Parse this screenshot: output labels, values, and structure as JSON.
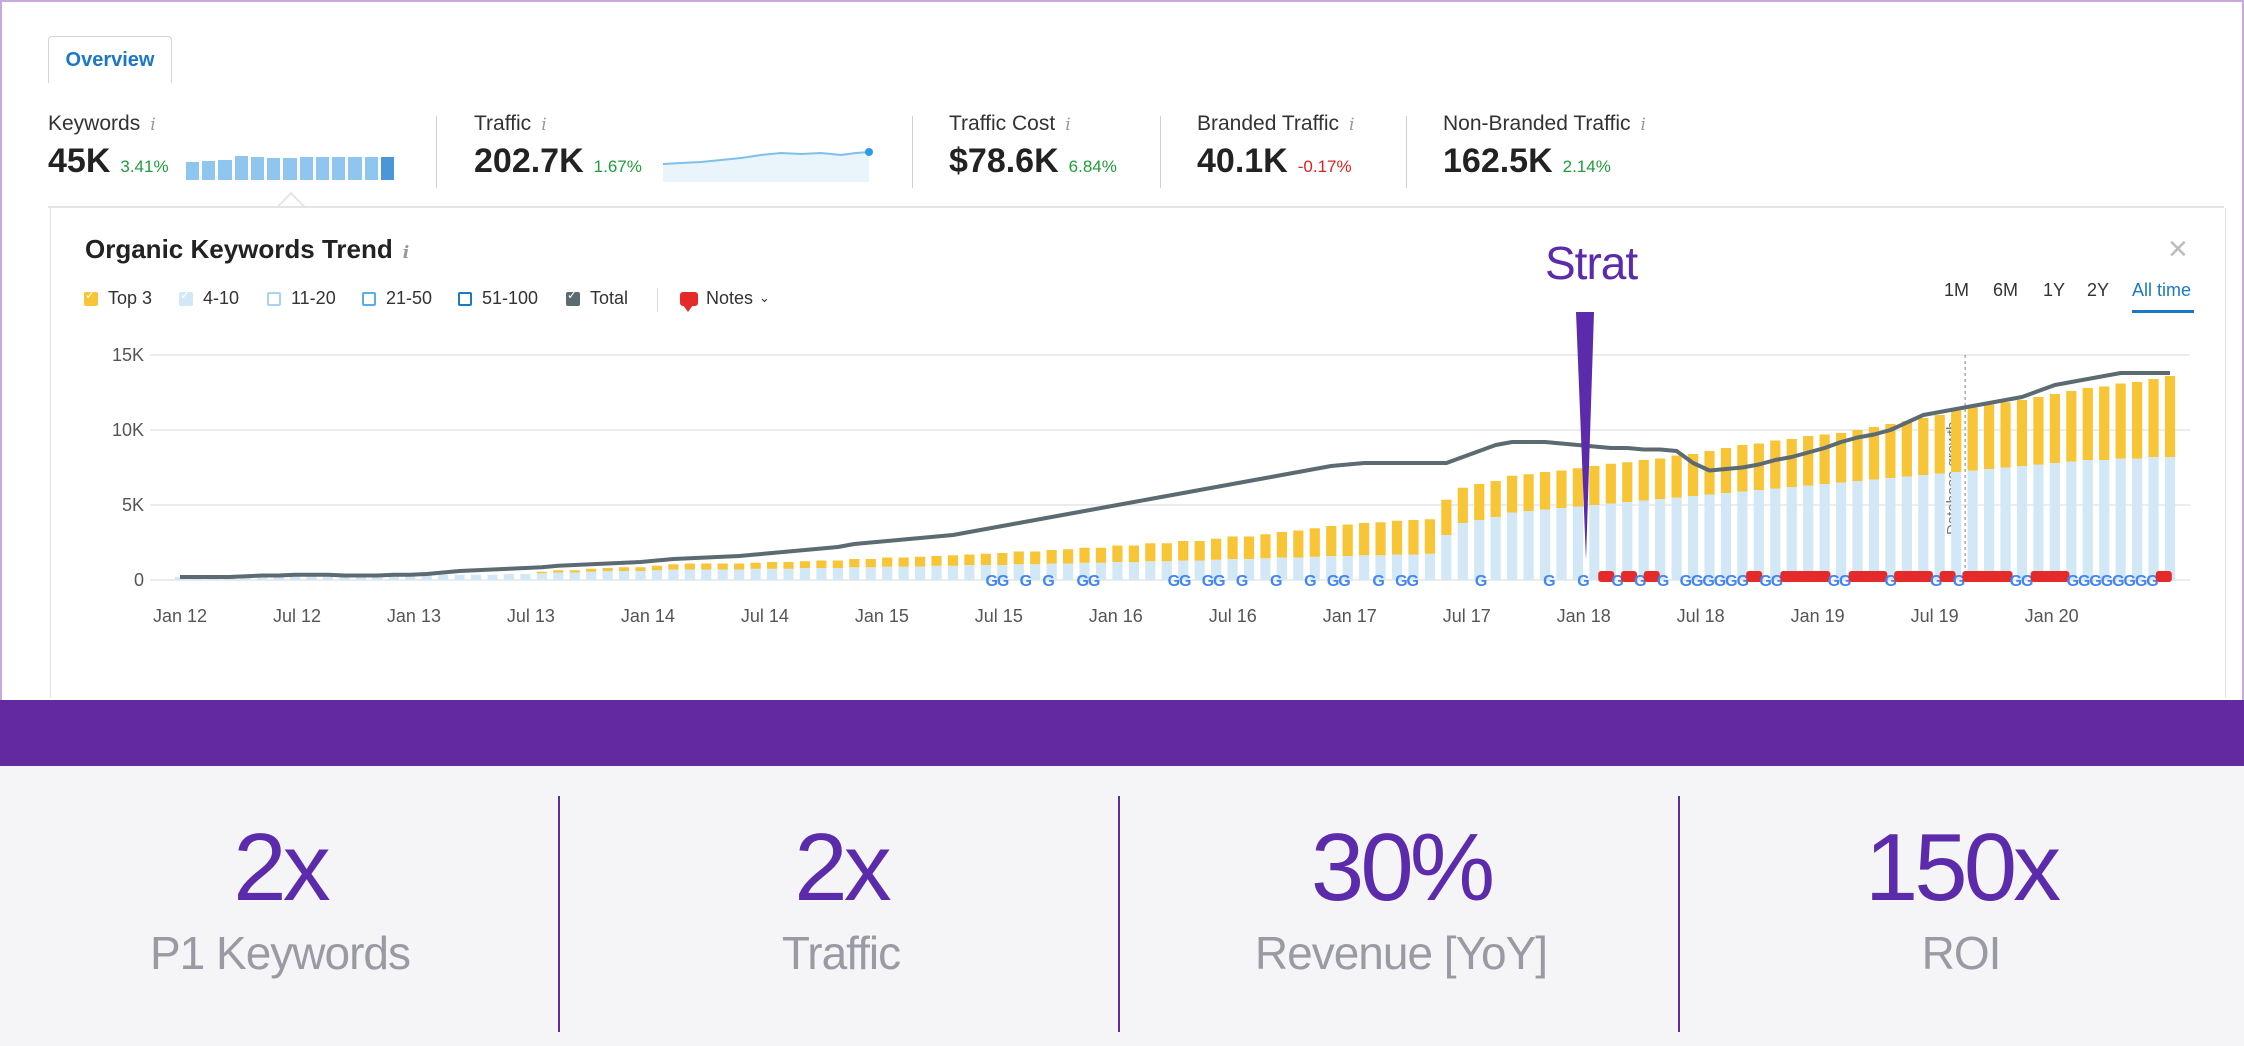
{
  "tabs": {
    "overview": "Overview"
  },
  "metrics": [
    {
      "label": "Keywords",
      "value": "45K",
      "change": "3.41%",
      "trend": "up"
    },
    {
      "label": "Traffic",
      "value": "202.7K",
      "change": "1.67%",
      "trend": "up"
    },
    {
      "label": "Traffic Cost",
      "value": "$78.6K",
      "change": "6.84%",
      "trend": "up"
    },
    {
      "label": "Branded Traffic",
      "value": "40.1K",
      "change": "-0.17%",
      "trend": "down"
    },
    {
      "label": "Non-Branded Traffic",
      "value": "162.5K",
      "change": "2.14%",
      "trend": "up"
    }
  ],
  "info_icon": "i",
  "card": {
    "title": "Organic Keywords Trend",
    "close_icon": "×",
    "legend": [
      "Top 3",
      "4-10",
      "11-20",
      "21-50",
      "51-100",
      "Total"
    ],
    "notes_label": "Notes",
    "periods": [
      "1M",
      "6M",
      "1Y",
      "2Y",
      "All time"
    ],
    "active_period": "All time"
  },
  "annotation": {
    "label": "Strat"
  },
  "colors": {
    "top3": "#f8c537",
    "r4_10": "#d3e8f6",
    "total_line": "#5c6a72",
    "accent": "#5c2bab",
    "positive": "#1f9d3c",
    "negative": "#e02020"
  },
  "chart_data": {
    "type": "bar",
    "title": "Organic Keywords Trend",
    "y_ticks": [
      "15K",
      "10K",
      "5K",
      "0"
    ],
    "ylim": [
      0,
      15000
    ],
    "x_ticks": [
      "Jan 12",
      "Jul 12",
      "Jan 13",
      "Jul 13",
      "Jan 14",
      "Jul 14",
      "Jan 15",
      "Jul 15",
      "Jan 16",
      "Jul 16",
      "Jan 17",
      "Jul 17",
      "Jan 18",
      "Jul 18",
      "Jan 19",
      "Jul 19",
      "Jan 20"
    ],
    "x_range": [
      "Jan 12",
      "Jun 20"
    ],
    "side_annotation": "Database growth",
    "series": [
      {
        "name": "Top 3",
        "values": [
          0,
          0,
          0,
          0,
          0,
          0,
          0,
          0,
          0,
          0,
          0,
          0,
          0,
          0,
          0,
          0,
          0,
          0,
          0,
          0,
          0,
          0,
          100,
          150,
          150,
          200,
          200,
          250,
          250,
          300,
          350,
          400,
          400,
          400,
          400,
          400,
          450,
          450,
          450,
          500,
          500,
          550,
          550,
          600,
          600,
          650,
          650,
          700,
          700,
          750,
          800,
          850,
          850,
          900,
          950,
          1000,
          1000,
          1100,
          1100,
          1200,
          1200,
          1300,
          1300,
          1400,
          1500,
          1500,
          1600,
          1700,
          1800,
          1900,
          2000,
          2100,
          2150,
          2200,
          2250,
          2300,
          2300,
          2350,
          2350,
          2400,
          2400,
          2450,
          2450,
          2500,
          2500,
          2550,
          2600,
          2650,
          2650,
          2700,
          2700,
          2800,
          2800,
          2900,
          3000,
          3100,
          3100,
          3200,
          3200,
          3300,
          3300,
          3300,
          3400,
          3500,
          3600,
          3700,
          3800,
          3900,
          4100,
          4200,
          4300,
          4350,
          4400,
          4500,
          4600,
          4700,
          4800,
          4900,
          5000,
          5100,
          5200,
          5400,
          5500,
          5600
        ]
      },
      {
        "name": "4-10",
        "values": [
          200,
          200,
          200,
          200,
          250,
          250,
          250,
          300,
          300,
          300,
          300,
          300,
          300,
          300,
          300,
          300,
          350,
          350,
          350,
          350,
          400,
          400,
          450,
          500,
          500,
          550,
          600,
          600,
          600,
          650,
          700,
          700,
          700,
          700,
          700,
          750,
          750,
          750,
          800,
          800,
          800,
          850,
          850,
          900,
          900,
          900,
          950,
          950,
          1000,
          1000,
          1000,
          1050,
          1050,
          1100,
          1100,
          1150,
          1150,
          1200,
          1200,
          1250,
          1250,
          1300,
          1300,
          1350,
          1400,
          1400,
          1450,
          1500,
          1500,
          1550,
          1600,
          1600,
          1650,
          1650,
          1700,
          1700,
          1750,
          3000,
          3800,
          4000,
          4200,
          4500,
          4600,
          4700,
          4800,
          4900,
          5000,
          5100,
          5200,
          5300,
          5400,
          5500,
          5600,
          5700,
          5800,
          5900,
          6000,
          6100,
          6200,
          6300,
          6400,
          6500,
          6600,
          6700,
          6800,
          6900,
          7000,
          7100,
          7200,
          7300,
          7400,
          7500,
          7600,
          7700,
          7800,
          7900,
          8000,
          8000,
          8100,
          8100,
          8200,
          8200
        ]
      },
      {
        "name": "Total",
        "values": [
          200,
          200,
          200,
          200,
          250,
          300,
          300,
          350,
          350,
          350,
          300,
          300,
          300,
          350,
          350,
          400,
          500,
          600,
          650,
          700,
          750,
          800,
          850,
          950,
          1000,
          1050,
          1100,
          1150,
          1200,
          1300,
          1400,
          1450,
          1500,
          1550,
          1600,
          1700,
          1800,
          1900,
          2000,
          2100,
          2200,
          2400,
          2500,
          2600,
          2700,
          2800,
          2900,
          3000,
          3200,
          3400,
          3600,
          3800,
          4000,
          4200,
          4400,
          4600,
          4800,
          5000,
          5200,
          5400,
          5600,
          5800,
          6000,
          6200,
          6400,
          6600,
          6800,
          7000,
          7200,
          7400,
          7600,
          7700,
          7800,
          7800,
          7800,
          7800,
          7800,
          7800,
          8200,
          8600,
          9000,
          9200,
          9200,
          9200,
          9100,
          9000,
          8900,
          8800,
          8800,
          8700,
          8700,
          8600,
          7800,
          7300,
          7400,
          7500,
          7700,
          8000,
          8200,
          8500,
          8800,
          9200,
          9500,
          9700,
          10000,
          10500,
          11000,
          11200,
          11400,
          11600,
          11800,
          12000,
          12200,
          12600,
          13000,
          13200,
          13400,
          13600,
          13800,
          13800,
          13800,
          13800
        ]
      }
    ]
  },
  "stats": [
    {
      "value": "2x",
      "label": "P1 Keywords"
    },
    {
      "value": "2x",
      "label": "Traffic"
    },
    {
      "value": "30%",
      "label": "Revenue [YoY]"
    },
    {
      "value": "150x",
      "label": "ROI"
    }
  ]
}
